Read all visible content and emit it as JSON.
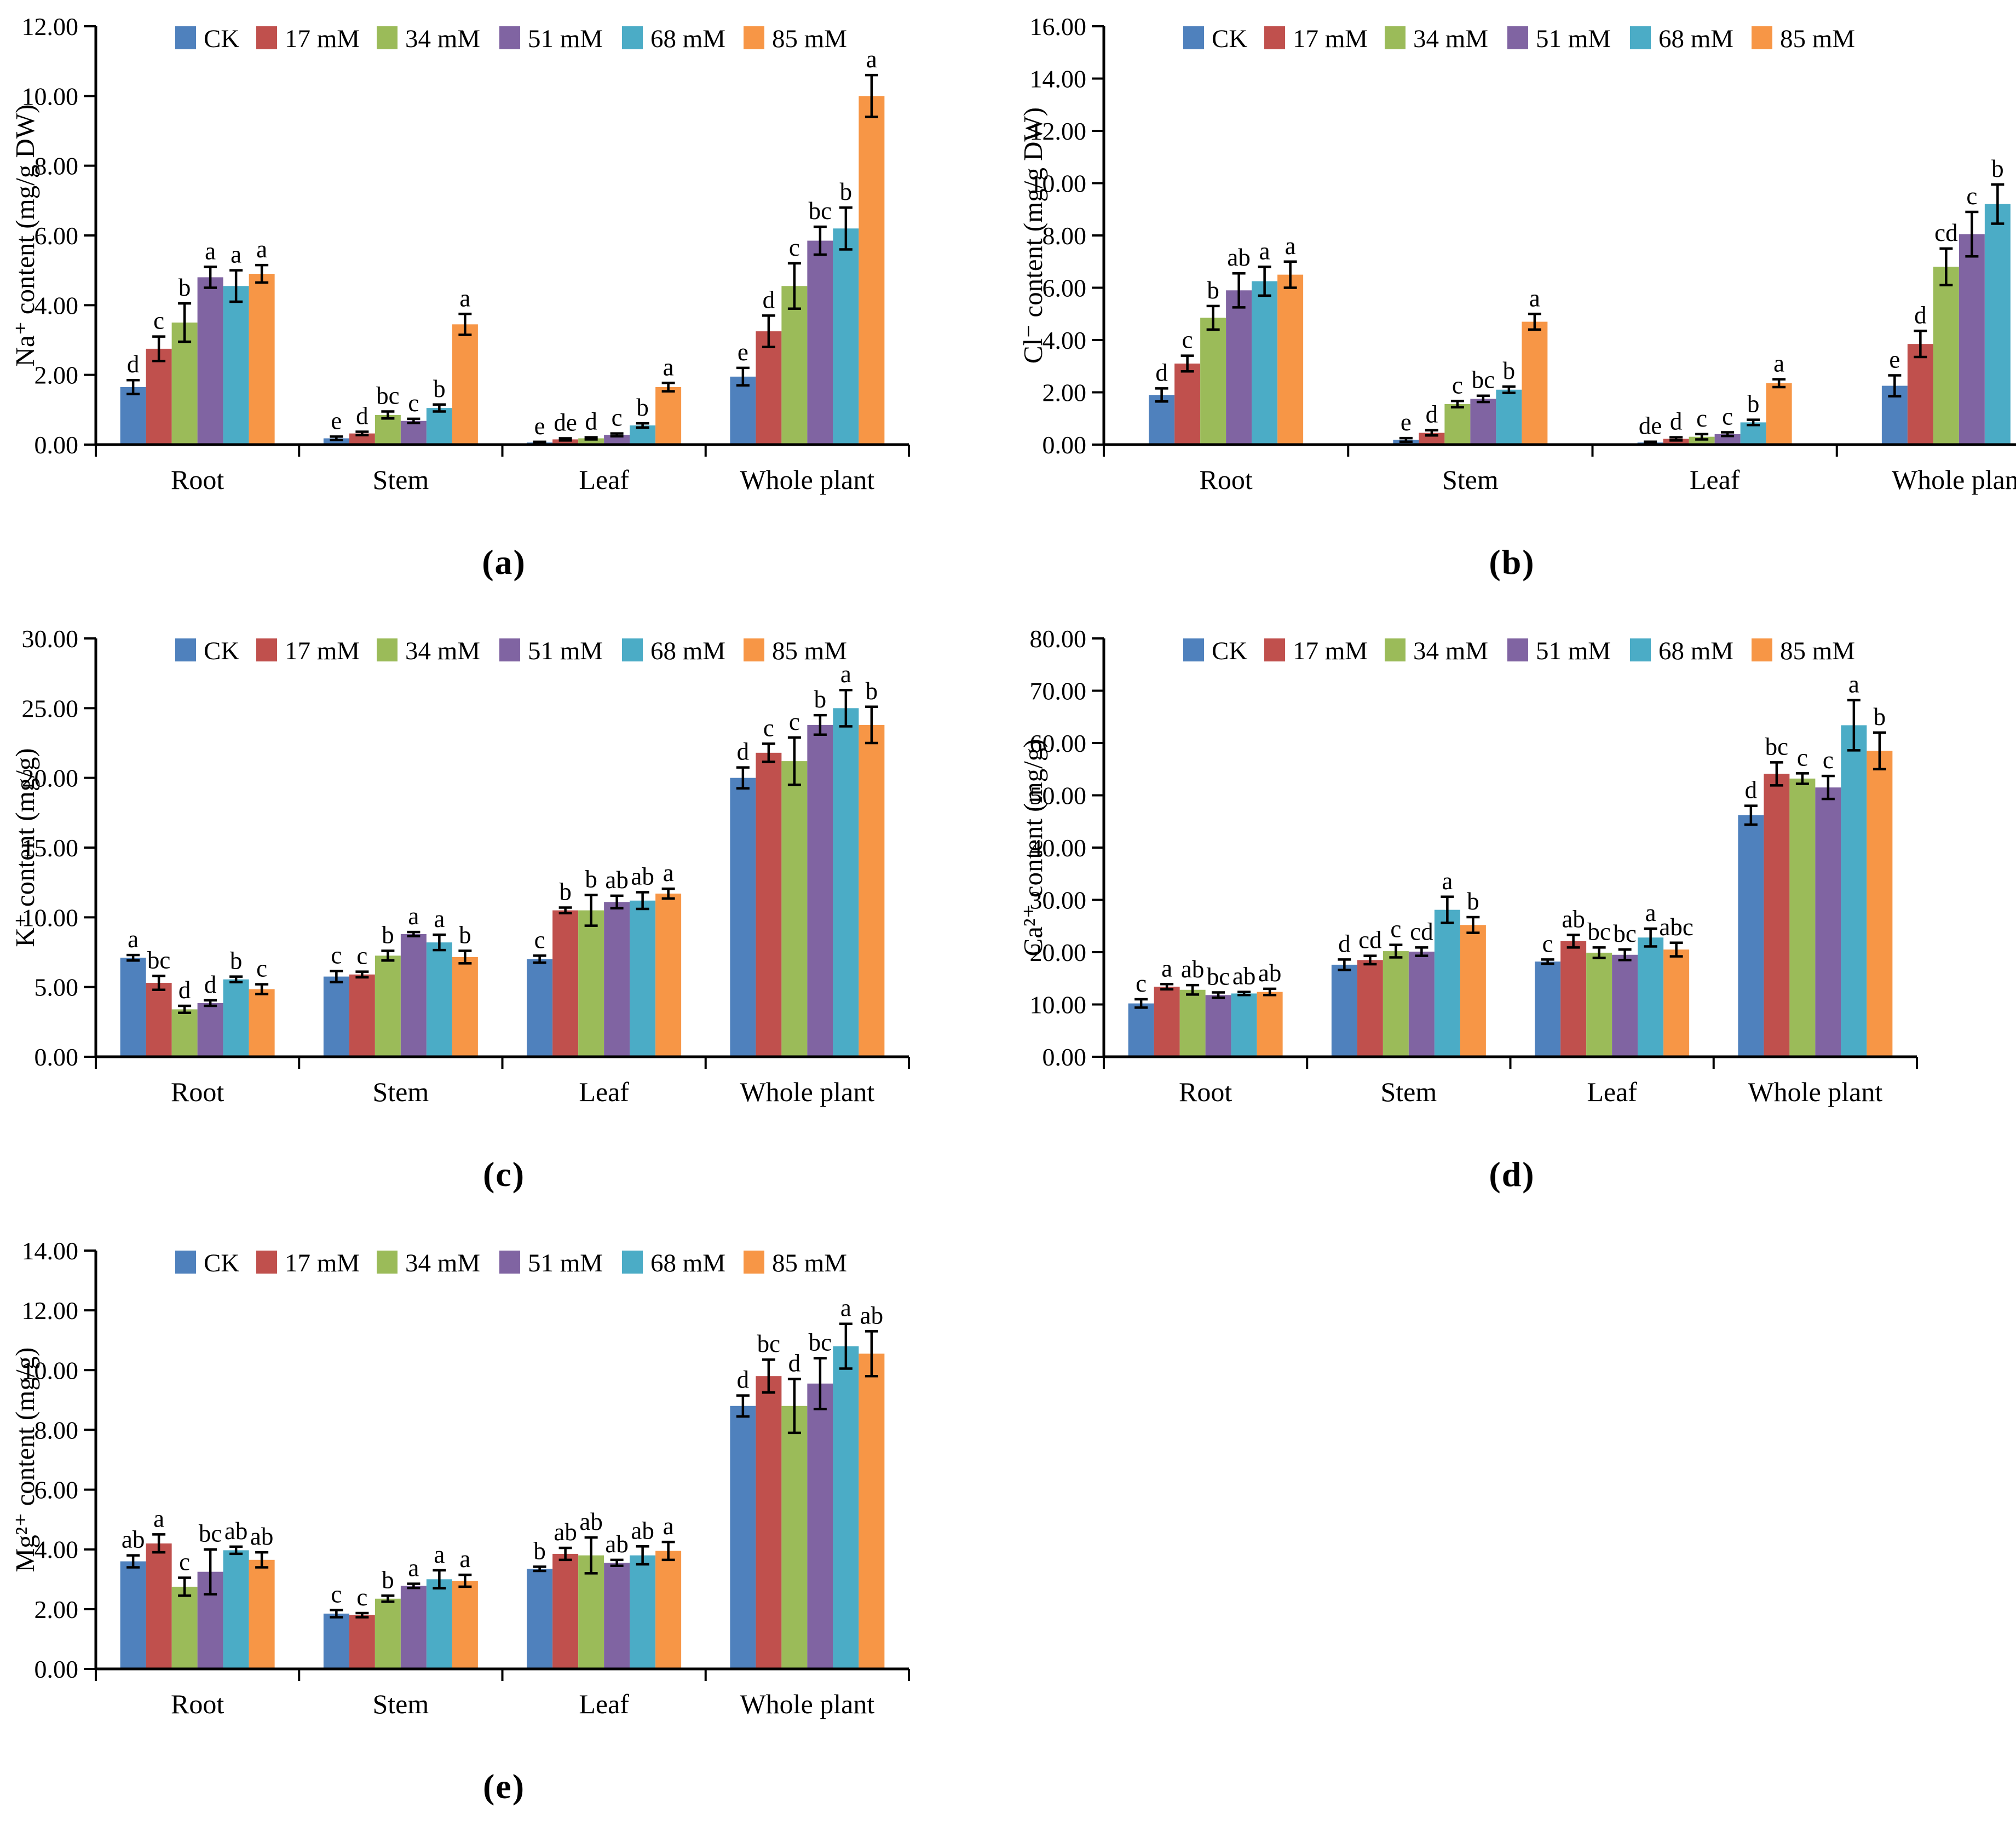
{
  "legend": {
    "entries": [
      "CK",
      "17 mM",
      "34 mM",
      "51 mM",
      "68 mM",
      "85 mM"
    ],
    "colors": [
      "#4F81BD",
      "#C0504D",
      "#9BBB59",
      "#8064A2",
      "#4BACC6",
      "#F79646"
    ],
    "position": "top"
  },
  "chart_data": [
    {
      "id": "a",
      "type": "bar",
      "caption": "(a)",
      "ylabel": "Na⁺ content (mg/g DW)",
      "xlabel": "",
      "ylim": [
        0,
        12
      ],
      "ystep": 2,
      "grid": false,
      "legend_position": "top",
      "categories": [
        "Root",
        "Stem",
        "Leaf",
        "Whole plant"
      ],
      "series": [
        {
          "name": "CK",
          "color": "#4F81BD",
          "values": [
            1.65,
            0.18,
            0.06,
            1.95
          ],
          "errors": [
            0.2,
            0.05,
            0.02,
            0.25
          ],
          "letters": [
            "d",
            "e",
            "e",
            "e"
          ]
        },
        {
          "name": "17 mM",
          "color": "#C0504D",
          "values": [
            2.75,
            0.32,
            0.15,
            3.25
          ],
          "errors": [
            0.35,
            0.05,
            0.03,
            0.45
          ],
          "letters": [
            "c",
            "d",
            "de",
            "d"
          ]
        },
        {
          "name": "34 mM",
          "color": "#9BBB59",
          "values": [
            3.5,
            0.85,
            0.18,
            4.55
          ],
          "errors": [
            0.55,
            0.1,
            0.03,
            0.65
          ],
          "letters": [
            "b",
            "bc",
            "d",
            "c"
          ]
        },
        {
          "name": "51 mM",
          "color": "#8064A2",
          "values": [
            4.8,
            0.68,
            0.28,
            5.85
          ],
          "errors": [
            0.3,
            0.06,
            0.04,
            0.4
          ],
          "letters": [
            "a",
            "c",
            "c",
            "bc"
          ]
        },
        {
          "name": "68 mM",
          "color": "#4BACC6",
          "values": [
            4.55,
            1.05,
            0.55,
            6.2
          ],
          "errors": [
            0.45,
            0.1,
            0.06,
            0.6
          ],
          "letters": [
            "a",
            "b",
            "b",
            "b"
          ]
        },
        {
          "name": "85 mM",
          "color": "#F79646",
          "values": [
            4.9,
            3.45,
            1.65,
            10.0
          ],
          "errors": [
            0.25,
            0.3,
            0.12,
            0.6
          ],
          "letters": [
            "a",
            "a",
            "a",
            "a"
          ]
        }
      ]
    },
    {
      "id": "b",
      "type": "bar",
      "caption": "(b)",
      "ylabel": "Cl⁻ content (mg/g DW)",
      "xlabel": "",
      "ylim": [
        0,
        16
      ],
      "ystep": 2,
      "grid": false,
      "legend_position": "top",
      "categories": [
        "Root",
        "Stem",
        "Leaf",
        "Whole plant"
      ],
      "series": [
        {
          "name": "CK",
          "color": "#4F81BD",
          "values": [
            1.9,
            0.18,
            0.08,
            2.25
          ],
          "errors": [
            0.25,
            0.07,
            0.03,
            0.4
          ],
          "letters": [
            "d",
            "e",
            "de",
            "e"
          ]
        },
        {
          "name": "17 mM",
          "color": "#C0504D",
          "values": [
            3.1,
            0.45,
            0.22,
            3.85
          ],
          "errors": [
            0.3,
            0.1,
            0.06,
            0.5
          ],
          "letters": [
            "c",
            "d",
            "d",
            "d"
          ]
        },
        {
          "name": "34 mM",
          "color": "#9BBB59",
          "values": [
            4.85,
            1.55,
            0.3,
            6.8
          ],
          "errors": [
            0.45,
            0.12,
            0.1,
            0.7
          ],
          "letters": [
            "b",
            "c",
            "c",
            "cd"
          ]
        },
        {
          "name": "51 mM",
          "color": "#8064A2",
          "values": [
            5.9,
            1.75,
            0.4,
            8.05
          ],
          "errors": [
            0.65,
            0.12,
            0.07,
            0.85
          ],
          "letters": [
            "ab",
            "bc",
            "c",
            "c"
          ]
        },
        {
          "name": "68 mM",
          "color": "#4BACC6",
          "values": [
            6.25,
            2.1,
            0.85,
            9.2
          ],
          "errors": [
            0.55,
            0.12,
            0.1,
            0.75
          ],
          "letters": [
            "a",
            "b",
            "b",
            "b"
          ]
        },
        {
          "name": "85 mM",
          "color": "#F79646",
          "values": [
            6.5,
            4.7,
            2.35,
            null
          ],
          "errors": [
            0.5,
            0.3,
            0.15,
            null
          ],
          "letters": [
            "a",
            "a",
            "a",
            null
          ]
        }
      ]
    },
    {
      "id": "c",
      "type": "bar",
      "caption": "(c)",
      "ylabel": "K⁺ content (mg/g)",
      "xlabel": "",
      "ylim": [
        0,
        30
      ],
      "ystep": 5,
      "grid": false,
      "legend_position": "top",
      "categories": [
        "Root",
        "Stem",
        "Leaf",
        "Whole plant"
      ],
      "series": [
        {
          "name": "CK",
          "color": "#4F81BD",
          "values": [
            7.1,
            5.75,
            7.0,
            20.0
          ],
          "errors": [
            0.2,
            0.4,
            0.25,
            0.75
          ],
          "letters": [
            "a",
            "c",
            "c",
            "d"
          ]
        },
        {
          "name": "17 mM",
          "color": "#C0504D",
          "values": [
            5.3,
            5.9,
            10.5,
            21.8
          ],
          "errors": [
            0.5,
            0.2,
            0.2,
            0.65
          ],
          "letters": [
            "bc",
            "c",
            "b",
            "c"
          ]
        },
        {
          "name": "34 mM",
          "color": "#9BBB59",
          "values": [
            3.4,
            7.25,
            10.5,
            21.2
          ],
          "errors": [
            0.25,
            0.35,
            1.1,
            1.7
          ],
          "letters": [
            "d",
            "b",
            "b",
            "c"
          ]
        },
        {
          "name": "51 mM",
          "color": "#8064A2",
          "values": [
            3.85,
            8.8,
            11.1,
            23.8
          ],
          "errors": [
            0.2,
            0.15,
            0.45,
            0.7
          ],
          "letters": [
            "d",
            "a",
            "ab",
            "b"
          ]
        },
        {
          "name": "68 mM",
          "color": "#4BACC6",
          "values": [
            5.55,
            8.2,
            11.2,
            25.0
          ],
          "errors": [
            0.2,
            0.55,
            0.6,
            1.3
          ],
          "letters": [
            "b",
            "a",
            "ab",
            "a"
          ]
        },
        {
          "name": "85 mM",
          "color": "#F79646",
          "values": [
            4.85,
            7.15,
            11.7,
            23.8
          ],
          "errors": [
            0.35,
            0.45,
            0.35,
            1.3
          ],
          "letters": [
            "c",
            "b",
            "a",
            "b"
          ]
        }
      ]
    },
    {
      "id": "d",
      "type": "bar",
      "caption": "(d)",
      "ylabel": "Ca²⁺ content (mg/g)",
      "xlabel": "",
      "ylim": [
        0,
        80
      ],
      "ystep": 10,
      "grid": false,
      "legend_position": "top",
      "categories": [
        "Root",
        "Stem",
        "Leaf",
        "Whole plant"
      ],
      "series": [
        {
          "name": "CK",
          "color": "#4F81BD",
          "values": [
            10.2,
            17.6,
            18.2,
            46.2
          ],
          "errors": [
            0.8,
            1.0,
            0.4,
            1.8
          ],
          "letters": [
            "c",
            "d",
            "c",
            "d"
          ]
        },
        {
          "name": "17 mM",
          "color": "#C0504D",
          "values": [
            13.4,
            18.5,
            22.1,
            54.1
          ],
          "errors": [
            0.5,
            0.8,
            1.2,
            2.2
          ],
          "letters": [
            "a",
            "cd",
            "ab",
            "bc"
          ]
        },
        {
          "name": "34 mM",
          "color": "#9BBB59",
          "values": [
            12.8,
            20.2,
            19.9,
            53.2
          ],
          "errors": [
            0.9,
            1.2,
            1.0,
            1.0
          ],
          "letters": [
            "ab",
            "c",
            "bc",
            "c"
          ]
        },
        {
          "name": "51 mM",
          "color": "#8064A2",
          "values": [
            11.8,
            20.1,
            19.5,
            51.5
          ],
          "errors": [
            0.5,
            0.8,
            1.0,
            2.2
          ],
          "letters": [
            "bc",
            "cd",
            "bc",
            "c"
          ]
        },
        {
          "name": "68 mM",
          "color": "#4BACC6",
          "values": [
            12.1,
            28.1,
            22.8,
            63.4
          ],
          "errors": [
            0.3,
            2.5,
            1.7,
            4.8
          ],
          "letters": [
            "ab",
            "a",
            "a",
            "a"
          ]
        },
        {
          "name": "85 mM",
          "color": "#F79646",
          "values": [
            12.4,
            25.2,
            20.5,
            58.5
          ],
          "errors": [
            0.6,
            1.5,
            1.3,
            3.5
          ],
          "letters": [
            "ab",
            "b",
            "abc",
            "b"
          ]
        }
      ]
    },
    {
      "id": "e",
      "type": "bar",
      "caption": "(e)",
      "ylabel": "Mg²⁺ content (mg/g)",
      "xlabel": "",
      "ylim": [
        0,
        14
      ],
      "ystep": 2,
      "grid": false,
      "legend_position": "top",
      "categories": [
        "Root",
        "Stem",
        "Leaf",
        "Whole plant"
      ],
      "series": [
        {
          "name": "CK",
          "color": "#4F81BD",
          "values": [
            3.6,
            1.85,
            3.35,
            8.8
          ],
          "errors": [
            0.2,
            0.12,
            0.07,
            0.35
          ],
          "letters": [
            "ab",
            "c",
            "b",
            "d"
          ]
        },
        {
          "name": "17 mM",
          "color": "#C0504D",
          "values": [
            4.2,
            1.8,
            3.85,
            9.8
          ],
          "errors": [
            0.3,
            0.07,
            0.2,
            0.55
          ],
          "letters": [
            "a",
            "c",
            "ab",
            "bc"
          ]
        },
        {
          "name": "34 mM",
          "color": "#9BBB59",
          "values": [
            2.75,
            2.35,
            3.8,
            8.8
          ],
          "errors": [
            0.3,
            0.1,
            0.6,
            0.9
          ],
          "letters": [
            "c",
            "b",
            "ab",
            "d"
          ]
        },
        {
          "name": "51 mM",
          "color": "#8064A2",
          "values": [
            3.25,
            2.78,
            3.55,
            9.55
          ],
          "errors": [
            0.75,
            0.07,
            0.1,
            0.85
          ],
          "letters": [
            "bc",
            "a",
            "ab",
            "bc"
          ]
        },
        {
          "name": "68 mM",
          "color": "#4BACC6",
          "values": [
            3.97,
            3.0,
            3.8,
            10.8
          ],
          "errors": [
            0.12,
            0.3,
            0.3,
            0.75
          ],
          "letters": [
            "ab",
            "a",
            "ab",
            "a"
          ]
        },
        {
          "name": "85 mM",
          "color": "#F79646",
          "values": [
            3.65,
            2.95,
            3.95,
            10.55
          ],
          "errors": [
            0.25,
            0.2,
            0.3,
            0.75
          ],
          "letters": [
            "ab",
            "a",
            "a",
            "ab"
          ]
        }
      ]
    }
  ]
}
